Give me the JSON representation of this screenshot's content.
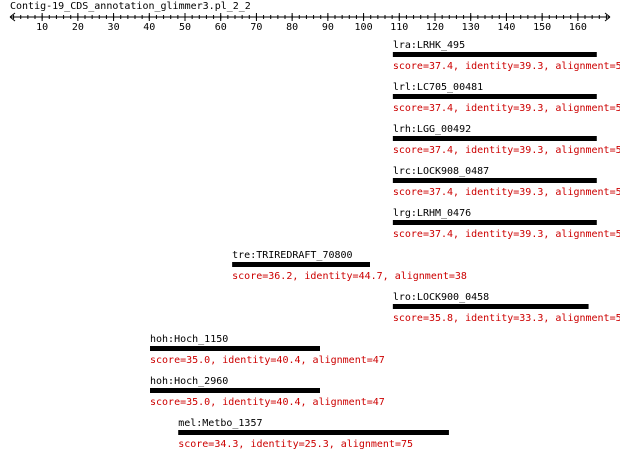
{
  "chart_data": {
    "type": "track",
    "title": "Contig-19_CDS_annotation_glimmer3.pl_2_2",
    "xlim": [
      1,
      169
    ],
    "xticks": [
      10,
      20,
      30,
      40,
      50,
      60,
      70,
      80,
      90,
      100,
      110,
      120,
      130,
      140,
      150,
      160
    ],
    "bar_color": "#000000",
    "note_color": "#cc0000",
    "features": [
      {
        "label": "lra:LRHK_495",
        "start": 108.2,
        "end": 165.3,
        "note": "score=37.4, identity=39.3, alignment=5"
      },
      {
        "label": "lrl:LC705_00481",
        "start": 108.2,
        "end": 165.3,
        "note": "score=37.4, identity=39.3, alignment=5"
      },
      {
        "label": "lrh:LGG_00492",
        "start": 108.2,
        "end": 165.3,
        "note": "score=37.4, identity=39.3, alignment=5"
      },
      {
        "label": "lrc:LOCK908_0487",
        "start": 108.2,
        "end": 165.3,
        "note": "score=37.4, identity=39.3, alignment=5"
      },
      {
        "label": "lrg:LRHM_0476",
        "start": 108.2,
        "end": 165.3,
        "note": "score=37.4, identity=39.3, alignment=5"
      },
      {
        "label": "tre:TRIREDRAFT_70800",
        "start": 63.2,
        "end": 101.8,
        "note": "score=36.2, identity=44.7, alignment=38"
      },
      {
        "label": "lro:LOCK900_0458",
        "start": 108.2,
        "end": 163.0,
        "note": "score=35.8, identity=33.3, alignment=5"
      },
      {
        "label": "hoh:Hoch_1150",
        "start": 40.2,
        "end": 87.8,
        "note": "score=35.0, identity=40.4, alignment=47"
      },
      {
        "label": "hoh:Hoch_2960",
        "start": 40.2,
        "end": 87.8,
        "note": "score=35.0, identity=40.4, alignment=47"
      },
      {
        "label": "mel:Metbo_1357",
        "start": 48.1,
        "end": 123.9,
        "note": "score=34.3, identity=25.3, alignment=75"
      }
    ]
  }
}
